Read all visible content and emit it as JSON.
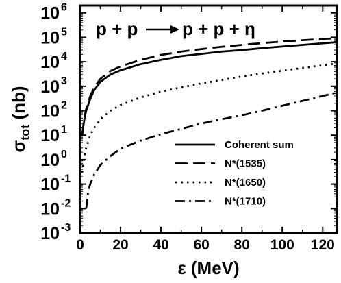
{
  "chart_data": {
    "type": "line",
    "title_parts": {
      "lhs": "p + p",
      "arrow": "→",
      "rhs": "p + p + η"
    },
    "xlabel": "ε (MeV)",
    "ylabel_main": "σ",
    "ylabel_sub": "tot",
    "ylabel_unit": "(nb)",
    "xlim": [
      0,
      127
    ],
    "ylim_log10": [
      -3,
      6.3
    ],
    "y_scale": "log",
    "x_ticks": [
      0,
      20,
      40,
      60,
      80,
      100,
      120
    ],
    "x_tick_labels": [
      "0",
      "20",
      "40",
      "60",
      "80",
      "100",
      "120"
    ],
    "y_ticks_exponents": [
      -3,
      -2,
      -1,
      0,
      1,
      2,
      3,
      4,
      5,
      6
    ],
    "y_tick_labels": [
      "10",
      "10",
      "10",
      "10",
      "10",
      "10",
      "10",
      "10",
      "10",
      "10"
    ],
    "y_tick_exps": [
      "-3",
      "-2",
      "-1",
      "0",
      "1",
      "2",
      "3",
      "4",
      "5",
      "6"
    ],
    "legend_position": "bottom-right",
    "series": [
      {
        "name": "Coherent sum",
        "dash": "solid",
        "x": [
          1,
          2,
          3,
          5,
          7,
          10,
          15,
          20,
          30,
          40,
          50,
          60,
          70,
          80,
          90,
          100,
          110,
          120,
          127
        ],
        "y": [
          10,
          40,
          100,
          300,
          700,
          1500,
          3000,
          4500,
          8000,
          12000,
          17000,
          21000,
          26000,
          30000,
          36000,
          42000,
          49000,
          57000,
          63000
        ]
      },
      {
        "name": "N*(1535)",
        "dash": "long-dash",
        "x": [
          1,
          2,
          3,
          5,
          7,
          10,
          15,
          20,
          30,
          40,
          50,
          60,
          70,
          80,
          90,
          100,
          110,
          120,
          127
        ],
        "y": [
          10,
          45,
          120,
          400,
          900,
          2000,
          4200,
          6500,
          12000,
          19000,
          26000,
          33000,
          41000,
          49000,
          58000,
          67000,
          76000,
          86000,
          92000
        ]
      },
      {
        "name": "N*(1650)",
        "dash": "dotted",
        "x": [
          1,
          2,
          3,
          5,
          7,
          10,
          15,
          20,
          30,
          40,
          50,
          60,
          70,
          80,
          90,
          100,
          110,
          120,
          127
        ],
        "y": [
          0.3,
          1.2,
          3,
          10,
          20,
          45,
          100,
          170,
          350,
          600,
          900,
          1300,
          1800,
          2500,
          3300,
          4300,
          5600,
          7200,
          8500
        ]
      },
      {
        "name": "N*(1710)",
        "dash": "dash-dot",
        "x": [
          3,
          4,
          5,
          7,
          10,
          15,
          20,
          30,
          40,
          50,
          60,
          70,
          80,
          90,
          100,
          110,
          120,
          127
        ],
        "y": [
          0.01,
          0.05,
          0.1,
          0.25,
          0.6,
          1.4,
          2.8,
          6,
          11,
          18,
          30,
          45,
          65,
          100,
          160,
          250,
          400,
          550
        ]
      }
    ]
  }
}
